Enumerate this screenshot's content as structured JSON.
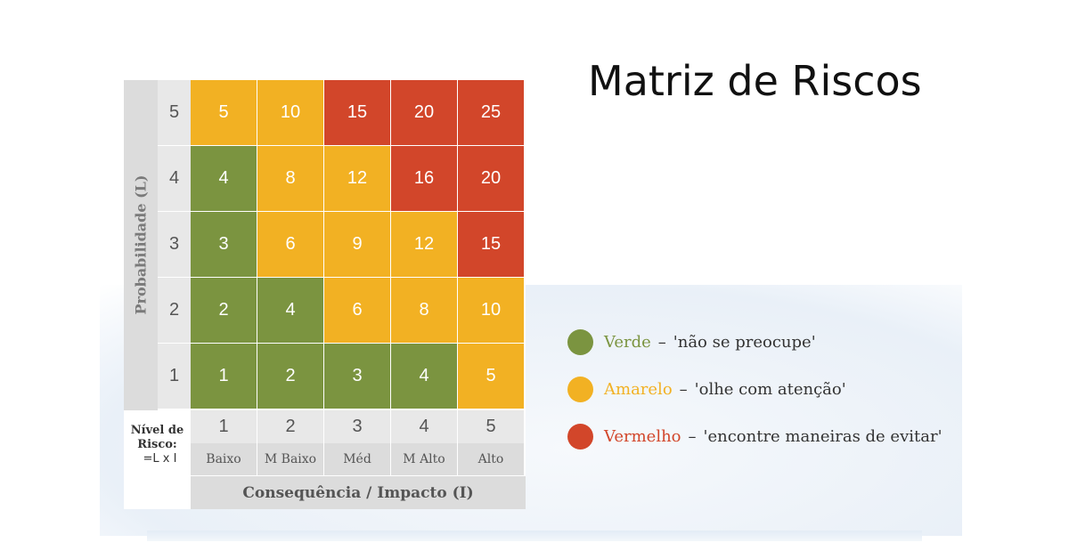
{
  "title": "Matriz de Riscos",
  "colors": {
    "green": "#7b9440",
    "yellow": "#f2b123",
    "red": "#d2462a"
  },
  "matrix": {
    "probability_label": "Probabilidade (L)",
    "consequence_label": "Consequência / Impacto (I)",
    "risk_note": {
      "line1": "Nível de",
      "line2": "Risco:",
      "line3": "=L x I"
    },
    "rows": [
      {
        "label": "5",
        "cells": [
          {
            "value": "5",
            "level": "yellow"
          },
          {
            "value": "10",
            "level": "yellow"
          },
          {
            "value": "15",
            "level": "red"
          },
          {
            "value": "20",
            "level": "red"
          },
          {
            "value": "25",
            "level": "red"
          }
        ]
      },
      {
        "label": "4",
        "cells": [
          {
            "value": "4",
            "level": "green"
          },
          {
            "value": "8",
            "level": "yellow"
          },
          {
            "value": "12",
            "level": "yellow"
          },
          {
            "value": "16",
            "level": "red"
          },
          {
            "value": "20",
            "level": "red"
          }
        ]
      },
      {
        "label": "3",
        "cells": [
          {
            "value": "3",
            "level": "green"
          },
          {
            "value": "6",
            "level": "yellow"
          },
          {
            "value": "9",
            "level": "yellow"
          },
          {
            "value": "12",
            "level": "yellow"
          },
          {
            "value": "15",
            "level": "red"
          }
        ]
      },
      {
        "label": "2",
        "cells": [
          {
            "value": "2",
            "level": "green"
          },
          {
            "value": "4",
            "level": "green"
          },
          {
            "value": "6",
            "level": "yellow"
          },
          {
            "value": "8",
            "level": "yellow"
          },
          {
            "value": "10",
            "level": "yellow"
          }
        ]
      },
      {
        "label": "1",
        "cells": [
          {
            "value": "1",
            "level": "green"
          },
          {
            "value": "2",
            "level": "green"
          },
          {
            "value": "3",
            "level": "green"
          },
          {
            "value": "4",
            "level": "green"
          },
          {
            "value": "5",
            "level": "yellow"
          }
        ]
      }
    ],
    "columns": [
      {
        "number": "1",
        "name": "Baixo"
      },
      {
        "number": "2",
        "name": "M Baixo"
      },
      {
        "number": "3",
        "name": "Méd"
      },
      {
        "number": "4",
        "name": "M Alto"
      },
      {
        "number": "5",
        "name": "Alto"
      }
    ]
  },
  "legend": {
    "separator": "–",
    "items": [
      {
        "name": "Verde",
        "text": "'não se preocupe'",
        "color": "#7b9440"
      },
      {
        "name": "Amarelo",
        "text": "'olhe com atenção'",
        "color": "#f2b123"
      },
      {
        "name": "Vermelho",
        "text": "'encontre maneiras de evitar'",
        "color": "#d2462a"
      }
    ]
  }
}
